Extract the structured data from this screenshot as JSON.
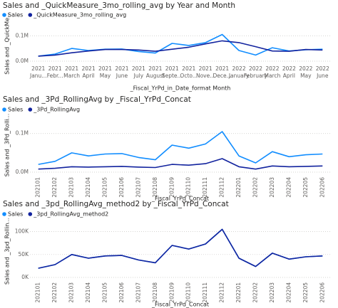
{
  "chart_data": [
    {
      "type": "line",
      "title": "Sales and _QuickMeasure_3mo_rolling_avg by Year and Month",
      "y_label": "Sales and _QuickMe...",
      "x_label": "_Fiscal_YrPd_in_Date_format Month",
      "categories": [
        [
          "2021",
          "Janu..."
        ],
        [
          "2021",
          "Febr..."
        ],
        [
          "2021",
          "March"
        ],
        [
          "2021",
          "April"
        ],
        [
          "2021",
          "May"
        ],
        [
          "2021",
          "June"
        ],
        [
          "2021",
          "July"
        ],
        [
          "2021",
          "August"
        ],
        [
          "2021",
          "Septe..."
        ],
        [
          "2021",
          "Octo..."
        ],
        [
          "2021",
          "Nove..."
        ],
        [
          "2021",
          "Dece..."
        ],
        [
          "2022",
          "January"
        ],
        [
          "2022",
          "February"
        ],
        [
          "2022",
          "March"
        ],
        [
          "2022",
          "April"
        ],
        [
          "2022",
          "May"
        ],
        [
          "2022",
          "June"
        ]
      ],
      "series": [
        {
          "name": "Sales",
          "color": "#118dff",
          "values": [
            20000,
            28000,
            50000,
            42000,
            47000,
            48000,
            38000,
            32000,
            70000,
            62000,
            73000,
            105000,
            42000,
            24000,
            53000,
            40000,
            45000,
            47000
          ]
        },
        {
          "name": "_QuickMeasure_3mo_rolling_avg",
          "color": "#12239e",
          "values": [
            20000,
            24000,
            33000,
            40000,
            46000,
            46000,
            44000,
            39000,
            47000,
            55000,
            68000,
            80000,
            73000,
            57000,
            40000,
            39000,
            46000,
            44000
          ]
        }
      ],
      "ylim": [
        0,
        140000
      ],
      "yticks": [
        {
          "value": 0,
          "label": "0.0M"
        },
        {
          "value": 100000,
          "label": "0.1M"
        }
      ],
      "grid": true
    },
    {
      "type": "line",
      "title": "Sales and _3Pd_RollingAvg by _Fiscal_YrPd_Concat",
      "y_label": "Sales and _3Pd_Rolli...",
      "x_label": "_Fiscal_YrPd_Concat",
      "categories": [
        "202101",
        "202102",
        "202103",
        "202104",
        "202105",
        "202106",
        "202107",
        "202108",
        "202109",
        "202110",
        "202111",
        "202112",
        "202201",
        "202202",
        "202203",
        "202204",
        "202205",
        "202206"
      ],
      "series": [
        {
          "name": "Sales",
          "color": "#118dff",
          "values": [
            20000,
            28000,
            50000,
            42000,
            47000,
            48000,
            38000,
            32000,
            70000,
            62000,
            73000,
            105000,
            42000,
            24000,
            53000,
            40000,
            45000,
            47000
          ]
        },
        {
          "name": "_3Pd_RollingAvg",
          "color": "#12239e",
          "values": [
            8000,
            10000,
            14000,
            13000,
            14000,
            15000,
            13000,
            12000,
            20000,
            18000,
            22000,
            35000,
            14000,
            8000,
            16000,
            14000,
            15000,
            16000
          ]
        }
      ],
      "ylim": [
        0,
        140000
      ],
      "yticks": [
        {
          "value": 0,
          "label": "0.0M"
        },
        {
          "value": 100000,
          "label": "0.1M"
        }
      ],
      "grid": true
    },
    {
      "type": "line",
      "title": "Sales and _3pd_RollingAvg_method2 by _Fiscal_YrPd_Concat",
      "y_label": "Sales and _3pd_Rollin...",
      "x_label": "_Fiscal_YrPd_Concat",
      "categories": [
        "202101",
        "202102",
        "202103",
        "202104",
        "202105",
        "202106",
        "202107",
        "202108",
        "202109",
        "202110",
        "202111",
        "202112",
        "202201",
        "202202",
        "202203",
        "202204",
        "202205",
        "202206"
      ],
      "series": [
        {
          "name": "Sales",
          "color": "#118dff",
          "values": [
            20000,
            28000,
            50000,
            42000,
            47000,
            48000,
            38000,
            32000,
            70000,
            62000,
            73000,
            105000,
            42000,
            24000,
            53000,
            40000,
            45000,
            47000
          ]
        },
        {
          "name": "_3pd_RollingAvg_method2",
          "color": "#12239e",
          "values": [
            20000,
            28000,
            50000,
            42000,
            47000,
            48000,
            38000,
            32000,
            70000,
            62000,
            73000,
            105000,
            42000,
            24000,
            53000,
            40000,
            45000,
            47000
          ]
        }
      ],
      "ylim": [
        0,
        115000
      ],
      "yticks": [
        {
          "value": 0,
          "label": "0K"
        },
        {
          "value": 50000,
          "label": "50K"
        },
        {
          "value": 100000,
          "label": "100K"
        }
      ],
      "grid": true
    }
  ]
}
